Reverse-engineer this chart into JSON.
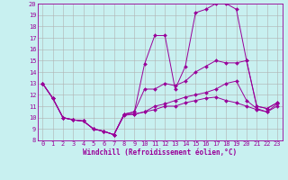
{
  "xlabel": "Windchill (Refroidissement éolien,°C)",
  "background_color": "#c8f0f0",
  "grid_color": "#b0b0b0",
  "line_color": "#990099",
  "x_values": [
    0,
    1,
    2,
    3,
    4,
    5,
    6,
    7,
    8,
    9,
    10,
    11,
    12,
    13,
    14,
    15,
    16,
    17,
    18,
    19,
    20,
    21,
    22,
    23
  ],
  "series": [
    [
      13.0,
      11.7,
      10.0,
      9.8,
      9.7,
      9.0,
      8.8,
      8.5,
      10.3,
      10.5,
      12.5,
      12.5,
      13.0,
      12.8,
      13.2,
      14.0,
      14.5,
      15.0,
      14.8,
      14.8,
      15.0,
      11.0,
      10.8,
      11.3
    ],
    [
      13.0,
      11.7,
      10.0,
      9.8,
      9.7,
      9.0,
      8.8,
      8.5,
      10.3,
      10.3,
      10.5,
      11.0,
      11.2,
      11.5,
      11.8,
      12.0,
      12.2,
      12.5,
      13.0,
      13.2,
      11.5,
      10.8,
      10.5,
      11.0
    ],
    [
      13.0,
      11.7,
      10.0,
      9.8,
      9.7,
      9.0,
      8.8,
      8.5,
      10.2,
      10.3,
      10.5,
      10.7,
      11.0,
      11.0,
      11.3,
      11.5,
      11.7,
      11.8,
      11.5,
      11.3,
      11.0,
      10.7,
      10.5,
      11.2
    ],
    [
      13.0,
      11.7,
      10.0,
      9.8,
      9.7,
      9.0,
      8.8,
      8.5,
      10.3,
      10.5,
      14.7,
      17.2,
      17.2,
      12.5,
      14.5,
      19.2,
      19.5,
      20.0,
      20.0,
      19.5,
      15.0,
      11.0,
      10.8,
      11.3
    ]
  ],
  "ylim": [
    8,
    20
  ],
  "xlim": [
    -0.5,
    23.5
  ],
  "yticks": [
    8,
    9,
    10,
    11,
    12,
    13,
    14,
    15,
    16,
    17,
    18,
    19,
    20
  ],
  "xticks": [
    0,
    1,
    2,
    3,
    4,
    5,
    6,
    7,
    8,
    9,
    10,
    11,
    12,
    13,
    14,
    15,
    16,
    17,
    18,
    19,
    20,
    21,
    22,
    23
  ],
  "marker": "D",
  "markersize": 2.0,
  "linewidth": 0.7,
  "tick_fontsize": 5.0,
  "xlabel_fontsize": 5.5
}
